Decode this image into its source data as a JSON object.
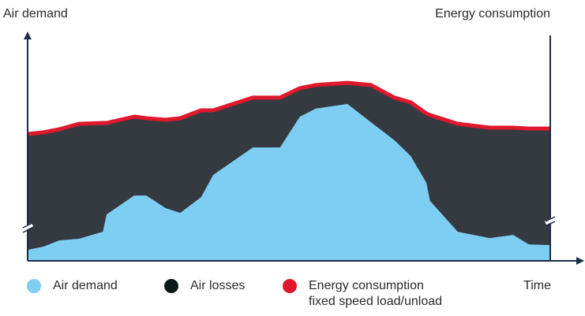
{
  "chart_data": {
    "type": "area",
    "y_label": "Air demand",
    "y2_label": "Energy consumption",
    "x_label": "Time",
    "xlim": [
      0,
      100
    ],
    "ylim": [
      0,
      100
    ],
    "x": [
      0,
      3,
      6.1,
      9.8,
      14.4,
      15.1,
      20.4,
      22.7,
      26.4,
      29.2,
      33.2,
      35.5,
      43.1,
      48.3,
      52.1,
      55.1,
      61.2,
      65.7,
      70.2,
      73.3,
      76.3,
      77,
      82.3,
      88.4,
      92.9,
      95.9,
      100
    ],
    "series": [
      {
        "name": "Air demand",
        "color": "#7ecef4",
        "values": [
          4.9,
          6.3,
          9.1,
          9.8,
          12.9,
          20.6,
          29,
          29,
          23.4,
          21.3,
          28.3,
          38.1,
          50.3,
          50.3,
          64,
          67.5,
          69.6,
          61.5,
          53.5,
          46.5,
          34.6,
          26.6,
          12.9,
          10.1,
          11.5,
          7.3,
          7
        ]
      },
      {
        "name": "Energy consumption",
        "color": "#e0182d",
        "fill_below": "#353a40",
        "values": [
          56.3,
          57,
          58.4,
          60.8,
          61.2,
          61.2,
          64,
          63.3,
          62.6,
          63.3,
          66.8,
          66.8,
          72.4,
          72.4,
          76.6,
          78,
          79,
          78,
          72.4,
          70.3,
          65.4,
          64.7,
          60.8,
          59.1,
          59.1,
          58.7,
          58.7
        ]
      }
    ],
    "legend": [
      {
        "lines": [
          "Air demand"
        ],
        "color": "#7ecef4"
      },
      {
        "lines": [
          "Air losses"
        ],
        "color": "#0d1a1a"
      },
      {
        "lines": [
          "Energy consumption",
          "fixed speed load/unload"
        ],
        "color": "#e0182d"
      }
    ]
  }
}
